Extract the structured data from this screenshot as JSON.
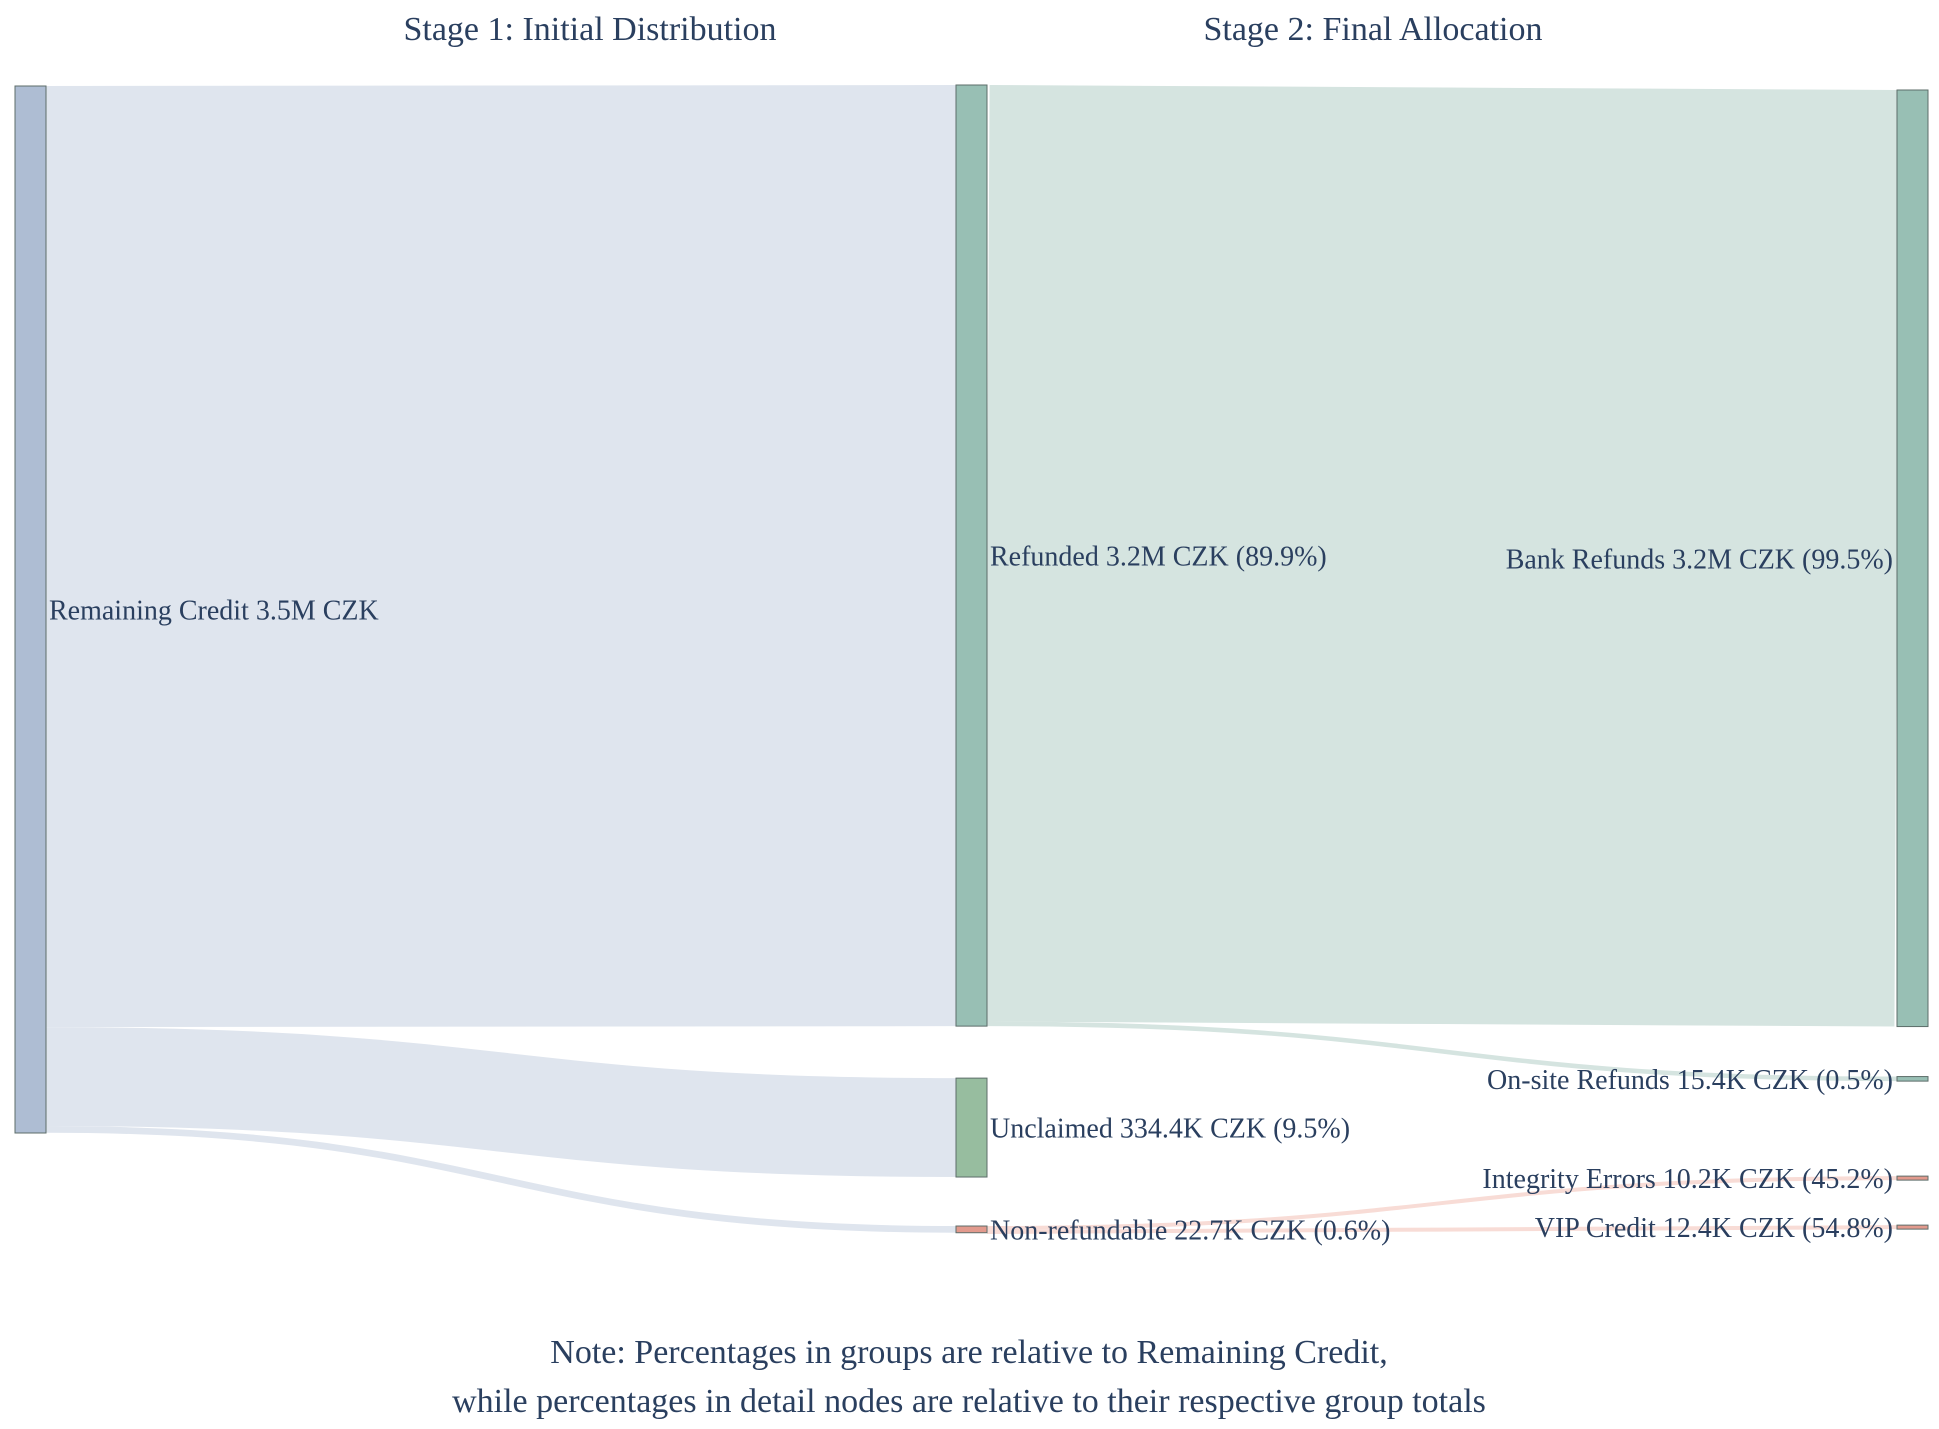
{
  "chart_data": {
    "type": "sankey",
    "title": "",
    "stage_titles": [
      "Stage 1: Initial Distribution",
      "Stage 2: Final Allocation"
    ],
    "unit": "CZK",
    "nodes": [
      {
        "id": "remaining",
        "label": "Remaining Credit 3.5M CZK",
        "value": 3540000,
        "column": 0,
        "color": "#aebdd3"
      },
      {
        "id": "refunded",
        "label": "Refunded 3.2M CZK (89.9%)",
        "value": 3182000,
        "column": 1,
        "color": "#98bfb4"
      },
      {
        "id": "unclaimed",
        "label": "Unclaimed 334.4K CZK (9.5%)",
        "value": 334400,
        "column": 1,
        "color": "#97bd9f"
      },
      {
        "id": "nonrefundable",
        "label": "Non-refundable 22.7K CZK (0.6%)",
        "value": 22700,
        "column": 1,
        "color": "#e29a8d"
      },
      {
        "id": "bank",
        "label": "Bank Refunds 3.2M CZK (99.5%)",
        "value": 3166600,
        "column": 2,
        "color": "#98bfb4"
      },
      {
        "id": "onsite",
        "label": "On-site Refunds 15.4K CZK (0.5%)",
        "value": 15400,
        "column": 2,
        "color": "#98bfb4"
      },
      {
        "id": "integrity",
        "label": "Integrity Errors 10.2K CZK (45.2%)",
        "value": 10200,
        "column": 2,
        "color": "#e29a8d"
      },
      {
        "id": "vip",
        "label": "VIP Credit 12.4K CZK (54.8%)",
        "value": 12400,
        "column": 2,
        "color": "#e29a8d"
      }
    ],
    "links": [
      {
        "source": "remaining",
        "target": "refunded",
        "value": 3182000,
        "color": "#dfe5ee"
      },
      {
        "source": "remaining",
        "target": "unclaimed",
        "value": 334400,
        "color": "#dfe5ee"
      },
      {
        "source": "remaining",
        "target": "nonrefundable",
        "value": 22700,
        "color": "#dfe5ee"
      },
      {
        "source": "refunded",
        "target": "bank",
        "value": 3166600,
        "color": "#d5e4e0"
      },
      {
        "source": "refunded",
        "target": "onsite",
        "value": 15400,
        "color": "#d5e4e0"
      },
      {
        "source": "nonrefundable",
        "target": "integrity",
        "value": 10200,
        "color": "#f8dcd6"
      },
      {
        "source": "nonrefundable",
        "target": "vip",
        "value": 12400,
        "color": "#f8dcd6"
      }
    ],
    "note": [
      "Note: Percentages in groups are relative to Remaining Credit,",
      "while percentages in detail nodes are relative to their respective group totals"
    ]
  }
}
